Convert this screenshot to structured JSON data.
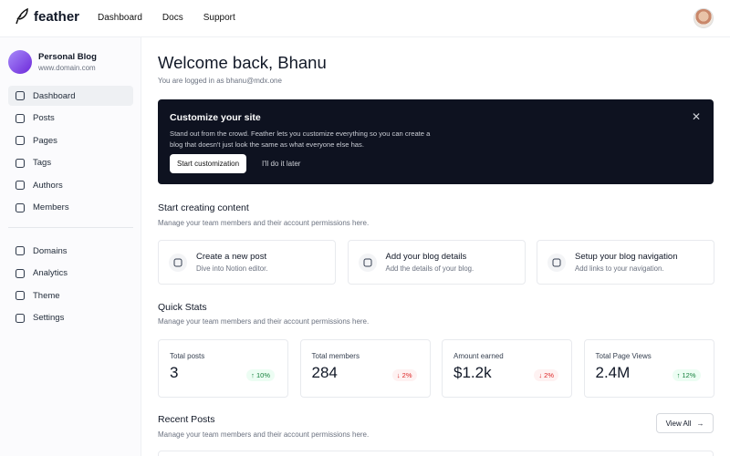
{
  "header": {
    "brand": "feather",
    "nav": [
      "Dashboard",
      "Docs",
      "Support"
    ]
  },
  "sidebar": {
    "site_name": "Personal Blog",
    "site_url": "www.domain.com",
    "active": 0,
    "menu": [
      "Dashboard",
      "Posts",
      "Pages",
      "Tags",
      "Authors",
      "Members"
    ],
    "menu2": [
      "Domains",
      "Analytics",
      "Theme",
      "Settings"
    ]
  },
  "main": {
    "title": "Welcome back, Bhanu",
    "subtitle": "You are logged in as bhanu@mdx.one",
    "banner": {
      "title": "Customize your site",
      "text": "Stand out from the crowd. Feather lets you customize everything so you can create a blog that doesn't just look the same as what everyone else has.",
      "primary": "Start customization",
      "secondary": "I'll do it later"
    },
    "create": {
      "title": "Start creating content",
      "subtitle": "Manage your team members and their account permissions here.",
      "cards": [
        {
          "title": "Create a new post",
          "text": "Dive into Notion editor."
        },
        {
          "title": "Add your blog details",
          "text": "Add the details of your blog."
        },
        {
          "title": "Setup your blog navigation",
          "text": "Add links to your navigation."
        }
      ]
    },
    "stats": {
      "title": "Quick Stats",
      "subtitle": "Manage your team members and their account permissions here.",
      "cards": [
        {
          "label": "Total posts",
          "value": "3",
          "change": "10%",
          "trend": "up"
        },
        {
          "label": "Total members",
          "value": "284",
          "change": "2%",
          "trend": "down"
        },
        {
          "label": "Amount earned",
          "value": "$1.2k",
          "change": "2%",
          "trend": "down"
        },
        {
          "label": "Total Page Views",
          "value": "2.4M",
          "change": "12%",
          "trend": "up"
        }
      ]
    },
    "recent": {
      "title": "Recent Posts",
      "subtitle": "Manage your team members and their account permissions here.",
      "button": "View All"
    }
  }
}
